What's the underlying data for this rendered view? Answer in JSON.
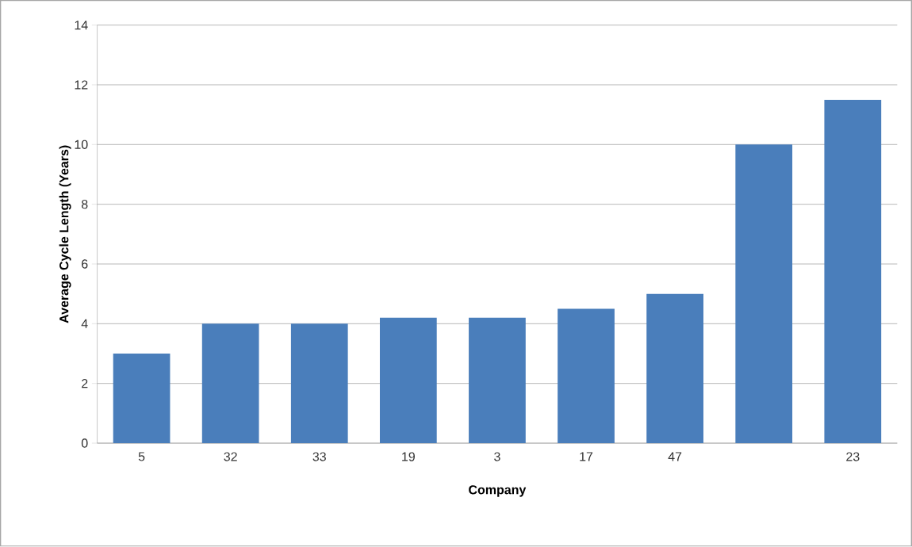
{
  "chart_data": {
    "type": "bar",
    "xlabel": "Company",
    "ylabel": "Average Cycle Length (Years)",
    "categories": [
      "5",
      "32",
      "33",
      "19",
      "3",
      "17",
      "47",
      null,
      "23"
    ],
    "values": [
      3,
      4,
      4,
      4.2,
      4.2,
      4.5,
      5,
      10,
      11.5
    ],
    "color": "#4a7ebb",
    "ylim": [
      0,
      14
    ],
    "yticks": [
      0,
      2,
      4,
      6,
      8,
      10,
      12,
      14
    ],
    "grid": "y"
  }
}
